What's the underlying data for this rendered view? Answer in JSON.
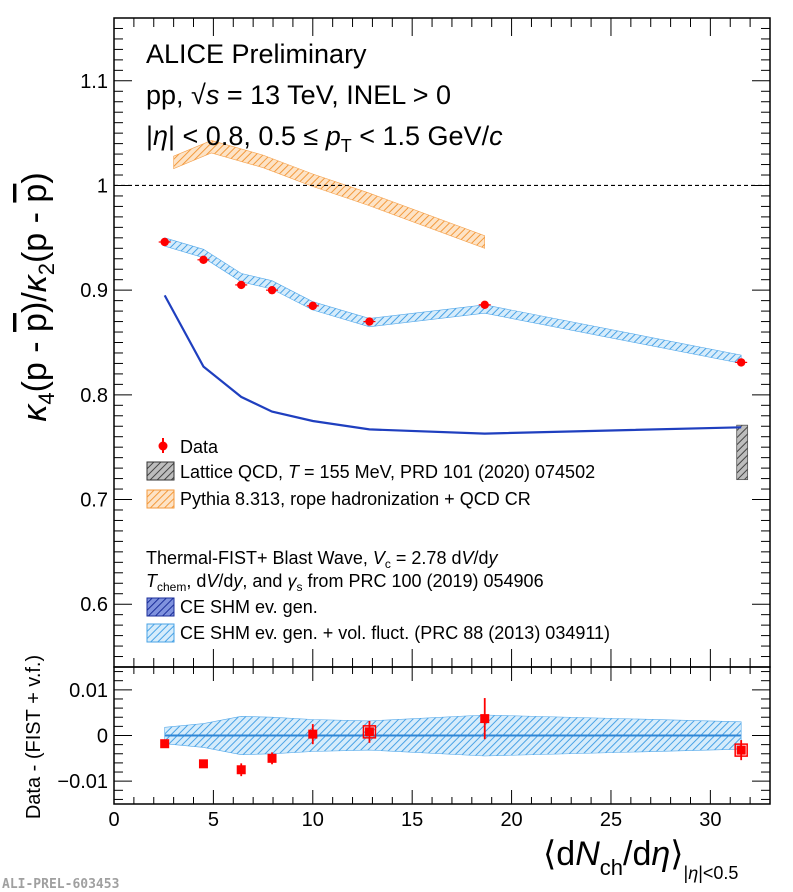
{
  "colors": {
    "data": "#ff0000",
    "pythia": "#f5a04a",
    "shm": "#1f3fbf",
    "vol_fluct": "#55a9ea",
    "lattice": "#555555",
    "reference_line": "#000000"
  },
  "chart_data": [
    {
      "type": "line",
      "panel": "main",
      "title_lines": [
        "ALICE Preliminary",
        "pp, √s = 13 TeV, INEL > 0",
        "|η| < 0.8, 0.5 ≤ pT < 1.5 GeV/c"
      ],
      "ylabel": "κ4(p - p̄)/κ2(p - p̄)",
      "ylim": [
        0.54,
        1.16
      ],
      "xlim": [
        0,
        33
      ],
      "yticks": [
        0.6,
        0.7,
        0.8,
        0.9,
        1.0,
        1.1
      ],
      "ytick_labels": [
        "0.6",
        "0.7",
        "0.8",
        "0.9",
        "1",
        "1.1"
      ],
      "reference_line": 1.0,
      "series": [
        {
          "name": "Data",
          "style": "points",
          "x": [
            2.55,
            4.5,
            6.4,
            7.95,
            10.0,
            12.85,
            18.65,
            31.55
          ],
          "y": [
            0.946,
            0.929,
            0.905,
            0.9,
            0.885,
            0.87,
            0.886,
            0.831
          ],
          "yerr": [
            0.0025,
            0.0025,
            0.0025,
            0.0025,
            0.0025,
            0.0025,
            0.0025,
            0.0025
          ]
        },
        {
          "name": "Pythia 8.313, rope hadronization + QCD CR",
          "style": "band",
          "x": [
            3.0,
            4.9,
            7.5,
            10.0,
            12.8,
            18.65
          ],
          "y": [
            1.022,
            1.037,
            1.023,
            1.005,
            0.987,
            0.946
          ],
          "halfwidth": 0.006
        },
        {
          "name": "CE SHM ev. gen.",
          "style": "line",
          "x": [
            2.55,
            4.5,
            6.4,
            7.95,
            10.0,
            12.85,
            18.65,
            31.55
          ],
          "y": [
            0.895,
            0.827,
            0.798,
            0.784,
            0.775,
            0.767,
            0.763,
            0.769
          ]
        },
        {
          "name": "CE SHM ev. gen. + vol. fluct. (PRC 88 (2013) 034911)",
          "style": "band",
          "x": [
            2.55,
            4.5,
            6.4,
            7.95,
            10.0,
            12.85,
            18.65,
            31.55
          ],
          "y": [
            0.946,
            0.935,
            0.912,
            0.905,
            0.885,
            0.869,
            0.882,
            0.834
          ],
          "halfwidth": 0.004
        },
        {
          "name": "Lattice QCD, T = 155 MeV, PRD 101 (2020) 074502",
          "style": "box",
          "x": 31.6,
          "dx": 0.55,
          "ymin": 0.719,
          "ymax": 0.771
        }
      ],
      "legend": {
        "entries": [
          "Data",
          "Lattice QCD, T = 155 MeV, PRD 101 (2020) 074502",
          "Pythia 8.313, rope hadronization + QCD CR"
        ]
      },
      "model_legend": {
        "header_lines": [
          "Thermal-FIST+ Blast Wave, Vc = 2.78 dV/dy",
          "Tchem, dV/dy, and γs from PRC 100 (2019) 054906"
        ],
        "entries": [
          "CE SHM ev. gen.",
          "CE SHM ev. gen. + vol. fluct. (PRC 88 (2013) 034911)"
        ]
      }
    },
    {
      "type": "scatter",
      "panel": "ratio",
      "ylabel": "Data - (FIST + v.f.)",
      "xlabel": "⟨dNch/dη⟩|η|<0.5",
      "xlim": [
        0,
        33
      ],
      "ylim": [
        -0.015,
        0.015
      ],
      "xticks": [
        0,
        5,
        10,
        15,
        20,
        25,
        30
      ],
      "xtick_labels": [
        "0",
        "5",
        "10",
        "15",
        "20",
        "25",
        "30"
      ],
      "yticks": [
        -0.01,
        0,
        0.01
      ],
      "ytick_labels": [
        "−0.01",
        "0",
        "0.01"
      ],
      "band": {
        "x": [
          2.55,
          4.5,
          6.4,
          7.95,
          10.0,
          12.85,
          18.65,
          31.55
        ],
        "halfwidth": [
          0.0018,
          0.0026,
          0.0042,
          0.004,
          0.0035,
          0.0032,
          0.0045,
          0.003
        ]
      },
      "series": [
        {
          "name": "Data - (FIST + v.f.)",
          "x": [
            2.55,
            4.5,
            6.4,
            7.95,
            10.0,
            12.85,
            18.65,
            31.55
          ],
          "y": [
            -0.0018,
            -0.0062,
            -0.0075,
            -0.005,
            0.0003,
            0.0008,
            0.0037,
            -0.0032
          ],
          "yerr": [
            0.0004,
            0.0005,
            0.0014,
            0.0013,
            0.0022,
            0.0024,
            0.0045,
            0.0022
          ],
          "sys_box": [
            false,
            false,
            false,
            false,
            false,
            true,
            false,
            true
          ]
        }
      ]
    }
  ],
  "watermark": "ALI-PREL-603453"
}
